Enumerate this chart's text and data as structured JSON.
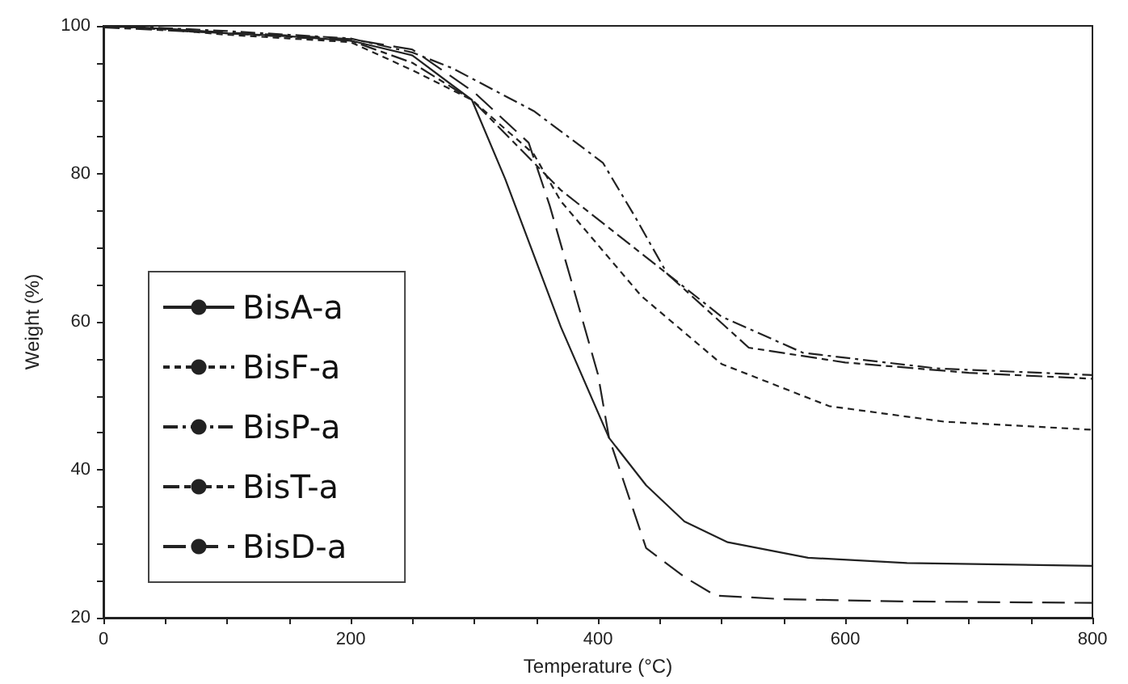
{
  "chart_data": {
    "type": "line",
    "xlabel": "Temperature (°C)",
    "ylabel": "Weight (%)",
    "xlim": [
      0,
      800
    ],
    "xticks": [
      0,
      {
        "value": 50,
        "label": null
      },
      {
        "value": 100,
        "label": null
      },
      {
        "value": 150,
        "label": null
      },
      200,
      {
        "value": 250,
        "label": null
      },
      {
        "value": 300,
        "label": null
      },
      {
        "value": 350,
        "label": null
      },
      400,
      {
        "value": 450,
        "label": null
      },
      {
        "value": 500,
        "label": null
      },
      {
        "value": 550,
        "label": null
      },
      600,
      {
        "value": 650,
        "label": null
      },
      {
        "value": 700,
        "label": null
      },
      {
        "value": 750,
        "label": null
      },
      800
    ],
    "ylim": [
      20,
      100
    ],
    "yticks": [
      20,
      {
        "value": 25,
        "label": null
      },
      {
        "value": 30,
        "label": null
      },
      {
        "value": 35,
        "label": null
      },
      40,
      {
        "value": 45,
        "label": null
      },
      {
        "value": 50,
        "label": null
      },
      {
        "value": 55,
        "label": null
      },
      60,
      {
        "value": 65,
        "label": null
      },
      {
        "value": 70,
        "label": null
      },
      {
        "value": 75,
        "label": null
      },
      80,
      {
        "value": 85,
        "label": null
      },
      {
        "value": 90,
        "label": null
      },
      {
        "value": 95,
        "label": null
      },
      100
    ],
    "grid": false,
    "legend": "left",
    "marker": "none",
    "series": [
      {
        "name": "BisA-a",
        "color": "#222222",
        "line_style": "solid",
        "x": [
          0,
          50,
          100,
          150,
          200,
          250,
          298,
          325,
          370,
          409,
          439,
          470,
          505,
          570,
          650,
          800
        ],
        "values": [
          100,
          99.6,
          99,
          98.6,
          98,
          96,
          90,
          79.3,
          59.3,
          44.3,
          37.9,
          33,
          30.2,
          28.1,
          27.4,
          27
        ]
      },
      {
        "name": "BisF-a",
        "color": "#222222",
        "line_style": "dashed",
        "x": [
          0,
          50,
          100,
          150,
          200,
          250,
          298,
          348,
          370,
          435,
          500,
          587,
          680,
          800
        ],
        "values": [
          100,
          99.5,
          98.8,
          98.3,
          97.8,
          94,
          90,
          82.7,
          76.3,
          63.5,
          54.3,
          48.6,
          46.5,
          45.4
        ]
      },
      {
        "name": "BisP-a",
        "color": "#222222",
        "line_style": "dashed",
        "x": [
          0,
          50,
          100,
          150,
          200,
          250,
          282,
          348,
          404,
          430,
          456,
          500,
          566,
          674,
          800
        ],
        "values": [
          100,
          99.7,
          99.3,
          98.8,
          98.3,
          96.4,
          94.3,
          88.5,
          81.5,
          74.2,
          66.5,
          60.7,
          55.8,
          53.7,
          52.8
        ]
      },
      {
        "name": "BisT-a",
        "color": "#222222",
        "line_style": "dashed",
        "x": [
          0,
          50,
          100,
          150,
          200,
          250,
          298,
          370,
          456,
          522,
          600,
          700,
          800
        ],
        "values": [
          99.8,
          99.4,
          99,
          98.5,
          98,
          95,
          90,
          77.8,
          66.5,
          56.5,
          54.5,
          53.1,
          52.3
        ]
      },
      {
        "name": "BisD-a",
        "color": "#222222",
        "line_style": "dashed",
        "x": [
          0,
          50,
          100,
          150,
          200,
          250,
          300,
          344,
          361,
          383,
          400,
          409,
          439,
          470,
          495,
          550,
          650,
          800
        ],
        "values": [
          100,
          99.6,
          99.1,
          98.7,
          98.2,
          96.8,
          91,
          84.2,
          75.7,
          62.9,
          52.9,
          44.3,
          29.4,
          25.5,
          23,
          22.5,
          22.2,
          22
        ]
      }
    ]
  }
}
